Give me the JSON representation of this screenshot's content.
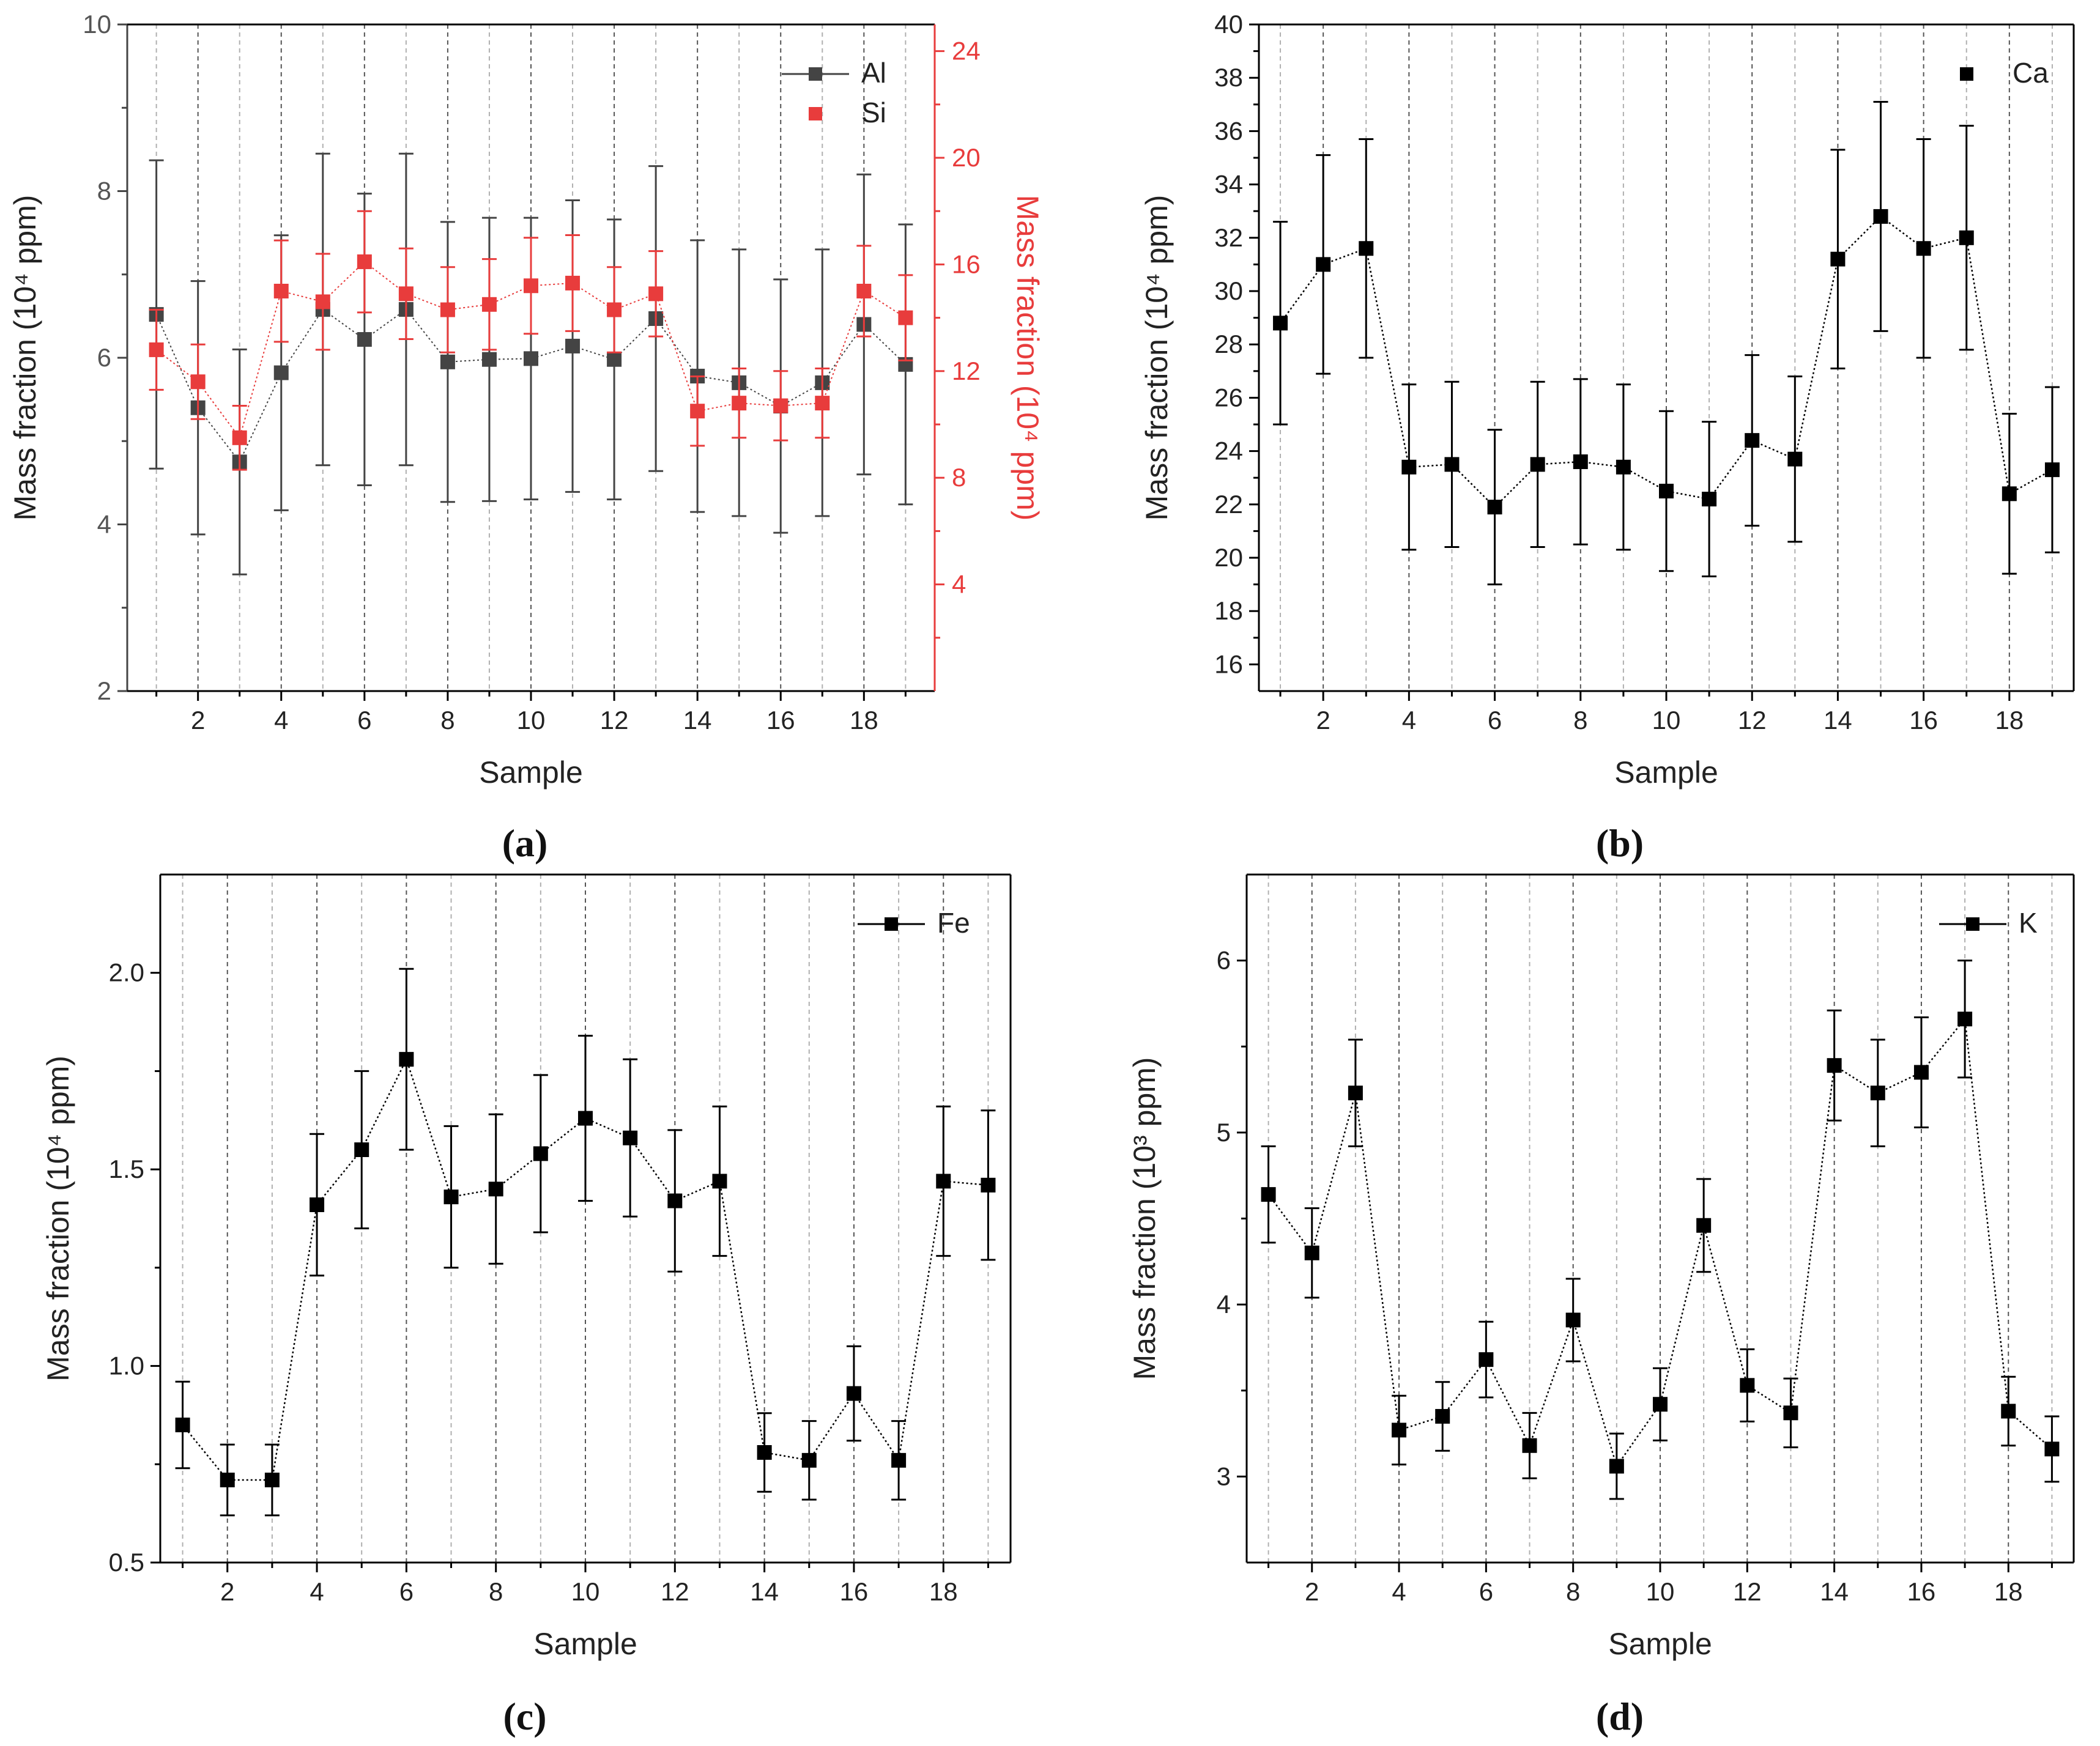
{
  "figure": {
    "panels": [
      "(a)",
      "(b)",
      "(c)",
      "(d)"
    ]
  },
  "colors": {
    "black": "#000000",
    "gray_series": "#444444",
    "red_series": "#e83c3c",
    "grid_major": "#555555",
    "grid_minor": "#b0b0b0"
  },
  "chart_data": [
    {
      "id": "a",
      "type": "scatter",
      "panel_label": "(a)",
      "xlabel": "Sample",
      "ylabel": "Mass fraction (10⁴ ppm)",
      "y2label": "Mass fraction (10⁴ ppm)",
      "x": [
        1,
        2,
        3,
        4,
        5,
        6,
        7,
        8,
        9,
        10,
        11,
        12,
        13,
        14,
        15,
        16,
        17,
        18,
        19
      ],
      "xlim": [
        0.3,
        19.7
      ],
      "xticks": [
        2,
        4,
        6,
        8,
        10,
        12,
        14,
        16,
        18
      ],
      "ylim": [
        2,
        10
      ],
      "yticks": [
        2,
        4,
        6,
        8,
        10
      ],
      "y2lim": [
        0,
        25
      ],
      "y2ticks": [
        4,
        8,
        12,
        16,
        20,
        24
      ],
      "legend": "top-right",
      "series": [
        {
          "name": "Al",
          "axis": "left",
          "color": "#444444",
          "values": [
            6.52,
            5.4,
            4.75,
            5.82,
            6.58,
            6.22,
            6.58,
            5.95,
            5.98,
            5.99,
            6.14,
            5.98,
            6.47,
            5.78,
            5.7,
            5.42,
            5.7,
            6.4,
            5.92
          ],
          "errors": [
            1.85,
            1.52,
            1.35,
            1.65,
            1.87,
            1.75,
            1.87,
            1.68,
            1.7,
            1.69,
            1.75,
            1.68,
            1.83,
            1.63,
            1.6,
            1.52,
            1.6,
            1.8,
            1.68
          ]
        },
        {
          "name": "Si",
          "axis": "right",
          "color": "#e83c3c",
          "values": [
            12.8,
            11.6,
            9.5,
            15.0,
            14.6,
            16.1,
            14.9,
            14.3,
            14.5,
            15.2,
            15.3,
            14.3,
            14.9,
            10.5,
            10.8,
            10.7,
            10.8,
            15.0,
            14.0
          ],
          "errors": [
            1.5,
            1.4,
            1.2,
            1.9,
            1.8,
            1.9,
            1.7,
            1.6,
            1.7,
            1.8,
            1.8,
            1.6,
            1.6,
            1.3,
            1.3,
            1.3,
            1.3,
            1.7,
            1.6
          ]
        }
      ]
    },
    {
      "id": "b",
      "type": "line",
      "panel_label": "(b)",
      "xlabel": "Sample",
      "ylabel": "Mass fraction (10⁴ ppm)",
      "x": [
        1,
        2,
        3,
        4,
        5,
        6,
        7,
        8,
        9,
        10,
        11,
        12,
        13,
        14,
        15,
        16,
        17,
        18,
        19
      ],
      "xlim": [
        0.5,
        19.5
      ],
      "xticks": [
        2,
        4,
        6,
        8,
        10,
        12,
        14,
        16,
        18
      ],
      "ylim": [
        15,
        40
      ],
      "yticks": [
        16,
        18,
        20,
        22,
        24,
        26,
        28,
        30,
        32,
        34,
        36,
        38,
        40
      ],
      "legend": "top-right",
      "series": [
        {
          "name": "Ca",
          "color": "#000000",
          "values": [
            28.8,
            31.0,
            31.6,
            23.4,
            23.5,
            21.9,
            23.5,
            23.6,
            23.4,
            22.5,
            22.2,
            24.4,
            23.7,
            31.2,
            32.8,
            31.6,
            32.0,
            22.4,
            23.3
          ],
          "errors": [
            3.8,
            4.1,
            4.1,
            3.1,
            3.1,
            2.9,
            3.1,
            3.1,
            3.1,
            3.0,
            2.9,
            3.2,
            3.1,
            4.1,
            4.3,
            4.1,
            4.2,
            3.0,
            3.1
          ]
        }
      ]
    },
    {
      "id": "c",
      "type": "line",
      "panel_label": "(c)",
      "xlabel": "Sample",
      "ylabel": "Mass fraction (10⁴ ppm)",
      "x": [
        1,
        2,
        3,
        4,
        5,
        6,
        7,
        8,
        9,
        10,
        11,
        12,
        13,
        14,
        15,
        16,
        17,
        18,
        19
      ],
      "xlim": [
        0.5,
        19.5
      ],
      "xticks": [
        2,
        4,
        6,
        8,
        10,
        12,
        14,
        16,
        18
      ],
      "ylim": [
        0.5,
        2.25
      ],
      "yticks": [
        0.5,
        1.0,
        1.5,
        2.0
      ],
      "legend": "top-right",
      "series": [
        {
          "name": "Fe",
          "color": "#000000",
          "values": [
            0.85,
            0.71,
            0.71,
            1.41,
            1.55,
            1.78,
            1.43,
            1.45,
            1.54,
            1.63,
            1.58,
            1.42,
            1.47,
            0.78,
            0.76,
            0.93,
            0.76,
            1.47,
            1.46
          ],
          "errors": [
            0.11,
            0.09,
            0.09,
            0.18,
            0.2,
            0.23,
            0.18,
            0.19,
            0.2,
            0.21,
            0.2,
            0.18,
            0.19,
            0.1,
            0.1,
            0.12,
            0.1,
            0.19,
            0.19
          ]
        }
      ]
    },
    {
      "id": "d",
      "type": "line",
      "panel_label": "(d)",
      "xlabel": "Sample",
      "ylabel": "Mass fraction (10³ ppm)",
      "x": [
        1,
        2,
        3,
        4,
        5,
        6,
        7,
        8,
        9,
        10,
        11,
        12,
        13,
        14,
        15,
        16,
        17,
        18,
        19
      ],
      "xlim": [
        0.5,
        19.5
      ],
      "xticks": [
        2,
        4,
        6,
        8,
        10,
        12,
        14,
        16,
        18
      ],
      "ylim": [
        2.5,
        6.5
      ],
      "yticks": [
        3,
        4,
        5,
        6
      ],
      "legend": "top-right",
      "series": [
        {
          "name": "K",
          "color": "#000000",
          "values": [
            4.64,
            4.3,
            5.23,
            3.27,
            3.35,
            3.68,
            3.18,
            3.91,
            3.06,
            3.42,
            4.46,
            3.53,
            3.37,
            5.39,
            5.23,
            5.35,
            5.66,
            3.38,
            3.16
          ],
          "errors": [
            0.28,
            0.26,
            0.31,
            0.2,
            0.2,
            0.22,
            0.19,
            0.24,
            0.19,
            0.21,
            0.27,
            0.21,
            0.2,
            0.32,
            0.31,
            0.32,
            0.34,
            0.2,
            0.19
          ]
        }
      ]
    }
  ]
}
